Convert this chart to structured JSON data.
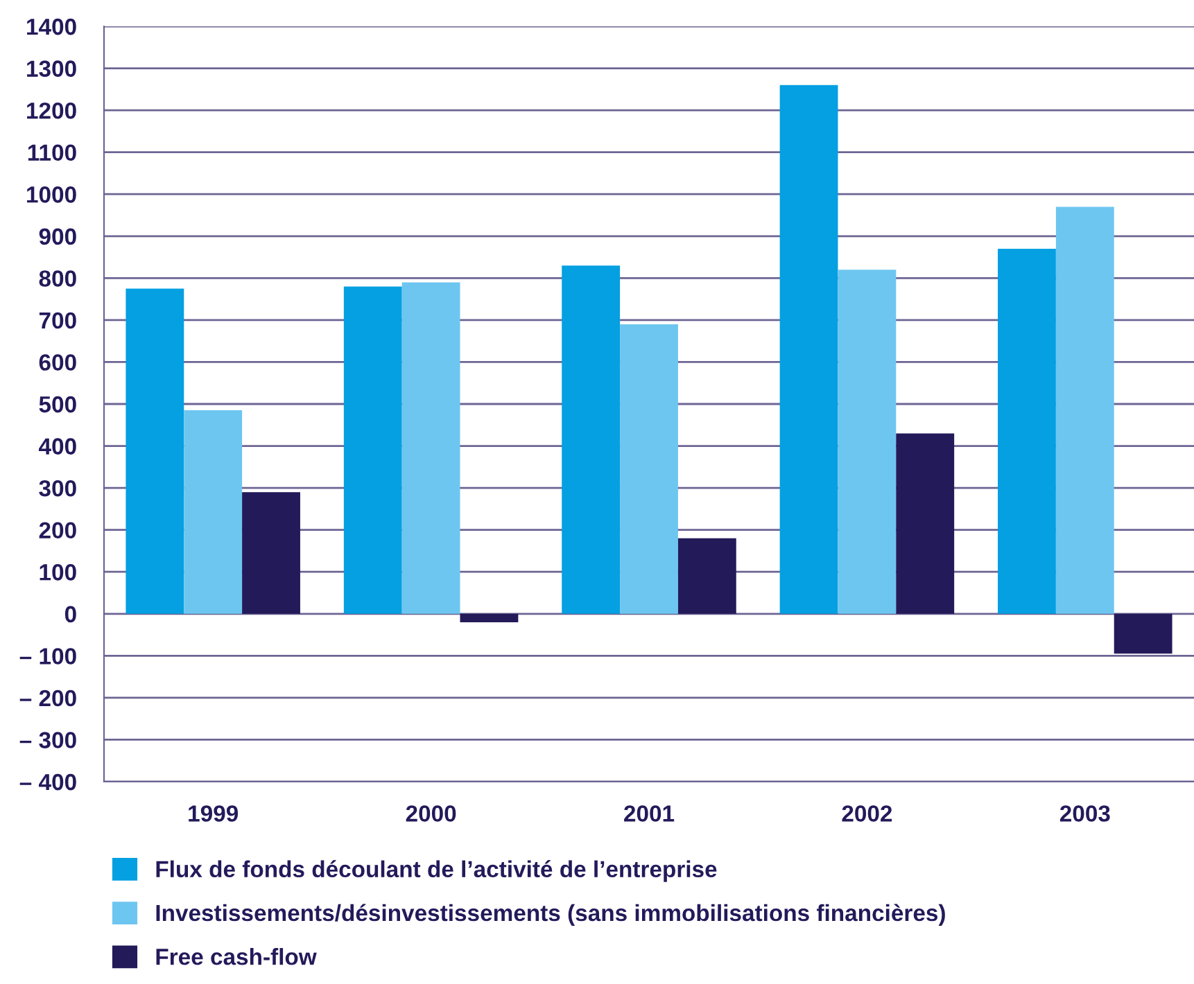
{
  "chart_data": {
    "type": "bar",
    "categories": [
      "1999",
      "2000",
      "2001",
      "2002",
      "2003"
    ],
    "series": [
      {
        "name": "Flux de fonds découlant de l’activité de l’entreprise",
        "color": "#04a0e2",
        "values": [
          775,
          780,
          830,
          1260,
          870
        ]
      },
      {
        "name": "Investissements/désinvestissements (sans immobilisations financières)",
        "color": "#6dc6f0",
        "values": [
          485,
          790,
          690,
          820,
          970
        ]
      },
      {
        "name": "Free cash-flow",
        "color": "#231a5a",
        "values": [
          290,
          -20,
          180,
          430,
          -95
        ]
      }
    ],
    "ylim": [
      -400,
      1400
    ],
    "yticks": [
      {
        "value": -400,
        "label": "– 400"
      },
      {
        "value": -300,
        "label": "– 300"
      },
      {
        "value": -200,
        "label": "– 200"
      },
      {
        "value": -100,
        "label": "– 100"
      },
      0,
      100,
      200,
      300,
      400,
      500,
      600,
      700,
      800,
      900,
      1000,
      1100,
      1200,
      1300,
      1400
    ],
    "grid": "y",
    "legend": "bottom"
  }
}
